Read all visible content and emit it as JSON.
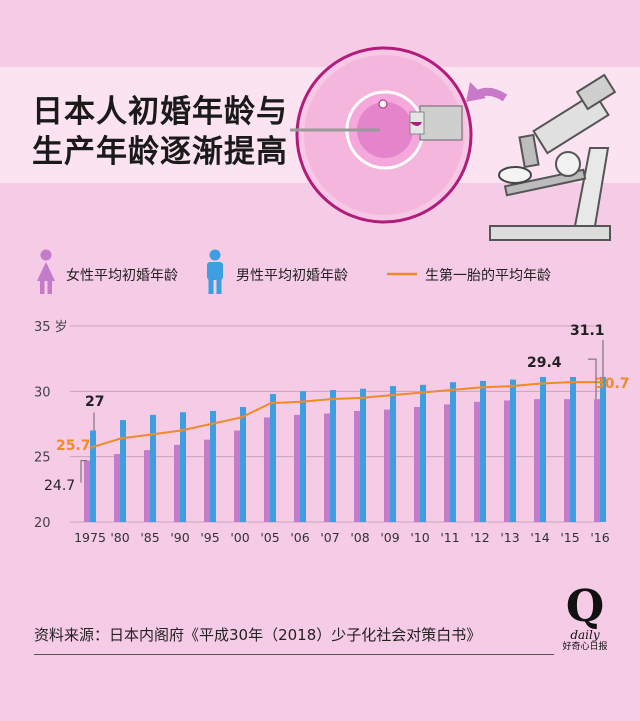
{
  "title": {
    "line1": "日本人初婚年龄与",
    "line2": "生产年龄逐渐提高"
  },
  "legend": {
    "female": "女性平均初婚年龄",
    "male": "男性平均初婚年龄",
    "birth": "生第一胎的平均年龄"
  },
  "colors": {
    "female": "#c27cc9",
    "male": "#3d9ee0",
    "birth": "#f08a2a",
    "background": "#f6cbe6",
    "band": "#fbe3f1"
  },
  "source": "资料来源：日本内阁府《平成30年（2018）少子化社会对策白书》",
  "logo": {
    "letter": "Q",
    "word": "daily",
    "name": "好奇心日报"
  },
  "chart_data": {
    "type": "bar",
    "categories": [
      "1975",
      "'80",
      "'85",
      "'90",
      "'95",
      "'00",
      "'05",
      "'06",
      "'07",
      "'08",
      "'09",
      "'10",
      "'11",
      "'12",
      "'13",
      "'14",
      "'15",
      "'16"
    ],
    "series": [
      {
        "name": "女性平均初婚年龄",
        "type": "bar",
        "values": [
          24.7,
          25.2,
          25.5,
          25.9,
          26.3,
          27.0,
          28.0,
          28.2,
          28.3,
          28.5,
          28.6,
          28.8,
          29.0,
          29.2,
          29.3,
          29.4,
          29.4,
          29.4
        ]
      },
      {
        "name": "男性平均初婚年龄",
        "type": "bar",
        "values": [
          27.0,
          27.8,
          28.2,
          28.4,
          28.5,
          28.8,
          29.8,
          30.0,
          30.1,
          30.2,
          30.4,
          30.5,
          30.7,
          30.8,
          30.9,
          31.1,
          31.1,
          31.1
        ]
      },
      {
        "name": "生第一胎的平均年龄",
        "type": "line",
        "values": [
          25.7,
          26.4,
          26.7,
          27.0,
          27.5,
          28.0,
          29.1,
          29.2,
          29.4,
          29.5,
          29.7,
          29.9,
          30.1,
          30.3,
          30.4,
          30.6,
          30.7,
          30.7
        ]
      }
    ],
    "ylim": [
      20,
      35
    ],
    "yticks": [
      "20",
      "25",
      "30",
      "35"
    ],
    "yunit": "岁",
    "grid": true,
    "annotations": [
      {
        "text": "24.7"
      },
      {
        "text": "27"
      },
      {
        "text": "25.7"
      },
      {
        "text": "29.4"
      },
      {
        "text": "31.1"
      },
      {
        "text": "30.7"
      }
    ]
  }
}
